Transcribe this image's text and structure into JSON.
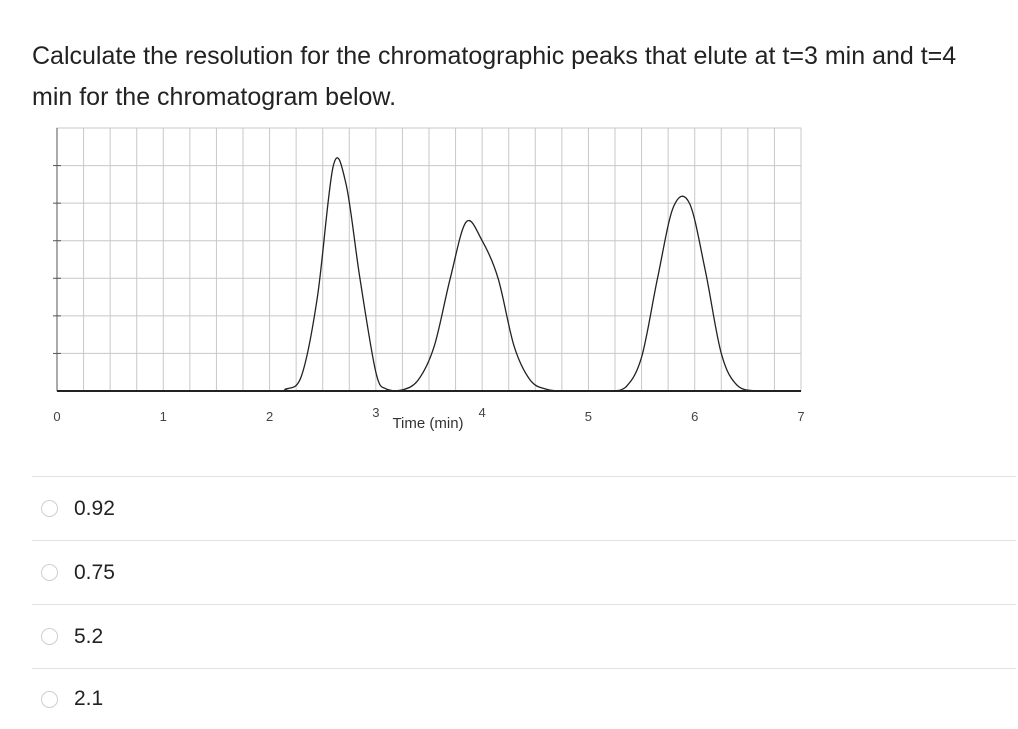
{
  "question": {
    "text": "Calculate the resolution for the chromatographic peaks that elute at t=3 min and t=4 min for the chromatogram below."
  },
  "chart_data": {
    "type": "line",
    "title": "",
    "xlabel": "Time (min)",
    "ylabel": "",
    "xlim": [
      0,
      7
    ],
    "ylim": [
      0,
      7
    ],
    "grid": true,
    "xticks": [
      0,
      1,
      2,
      3,
      4,
      5,
      6,
      7
    ],
    "xtick_labels": [
      "0",
      "1",
      "2",
      "3",
      "4",
      "5",
      "6",
      "7"
    ],
    "series": [
      {
        "x": [
          0,
          2.0,
          2.15,
          2.3,
          2.45,
          2.6,
          2.72,
          2.85,
          3.0,
          3.1,
          3.25,
          3.4,
          3.55,
          3.7,
          3.85,
          4.0,
          4.15,
          4.3,
          4.45,
          4.6,
          4.8,
          5.2,
          5.35,
          5.5,
          5.65,
          5.8,
          5.95,
          6.1,
          6.25,
          6.4,
          6.6,
          7.0
        ],
        "y": [
          0,
          0,
          0.05,
          0.4,
          2.5,
          6.0,
          5.5,
          3.0,
          0.5,
          0.05,
          0.03,
          0.3,
          1.2,
          3.0,
          4.5,
          4.0,
          3.0,
          1.2,
          0.3,
          0.05,
          0,
          0,
          0.1,
          0.9,
          3.0,
          4.9,
          5.0,
          3.2,
          1.0,
          0.15,
          0,
          0
        ]
      }
    ]
  },
  "options": [
    {
      "label": "0.92"
    },
    {
      "label": "0.75"
    },
    {
      "label": "5.2"
    },
    {
      "label": "2.1"
    }
  ],
  "colors": {
    "grid": "#c8c8c8",
    "axis": "#222222",
    "curve": "#222222",
    "radio_border": "#cfcfcf",
    "divider": "#e2e2e2"
  }
}
